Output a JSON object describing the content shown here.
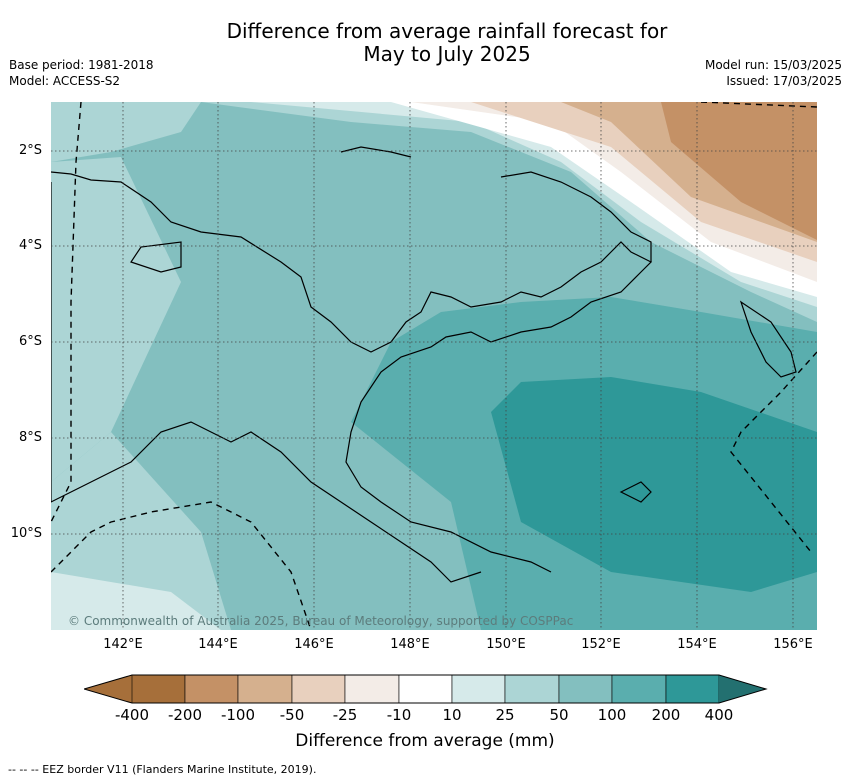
{
  "title": {
    "line1": "Difference from average rainfall forecast for",
    "line2": "May to July 2025"
  },
  "meta": {
    "base_period": "Base period: 1981-2018",
    "model": "Model: ACCESS-S2",
    "model_run": "Model run: 15/03/2025",
    "issued": "Issued: 17/03/2025"
  },
  "map": {
    "lat_labels": [
      "2°S",
      "4°S",
      "6°S",
      "8°S",
      "10°S"
    ],
    "lon_labels": [
      "142°E",
      "144°E",
      "146°E",
      "148°E",
      "150°E",
      "152°E",
      "154°E",
      "156°E"
    ],
    "copyright": "© Commonwealth of Australia 2025, Bureau of Meteorology, supported by COSPPac",
    "eez_note": "-- -- -- EEZ border V11 (Flanders Marine Institute, 2019)."
  },
  "colorbar": {
    "title": "Difference from average (mm)",
    "ticks": [
      "-400",
      "-200",
      "-100",
      "-50",
      "-25",
      "-10",
      "10",
      "25",
      "50",
      "100",
      "200",
      "400"
    ],
    "colors": [
      "#a66f3a",
      "#c49166",
      "#d5b08e",
      "#e8d0be",
      "#f3ece7",
      "#ffffff",
      "#d6eaea",
      "#acd5d5",
      "#83bfbf",
      "#5aaeae",
      "#2e9898",
      "#237070"
    ]
  },
  "colors": {
    "brown_strong": "#c49166",
    "brown_mid": "#d5b08e",
    "brown_light": "#e8d0be",
    "neutral": "#ffffff",
    "teal_light": "#d6eaea",
    "teal_25": "#acd5d5",
    "teal_50": "#83bfbf",
    "teal_100": "#5aaeae",
    "teal_200": "#2e9898"
  }
}
